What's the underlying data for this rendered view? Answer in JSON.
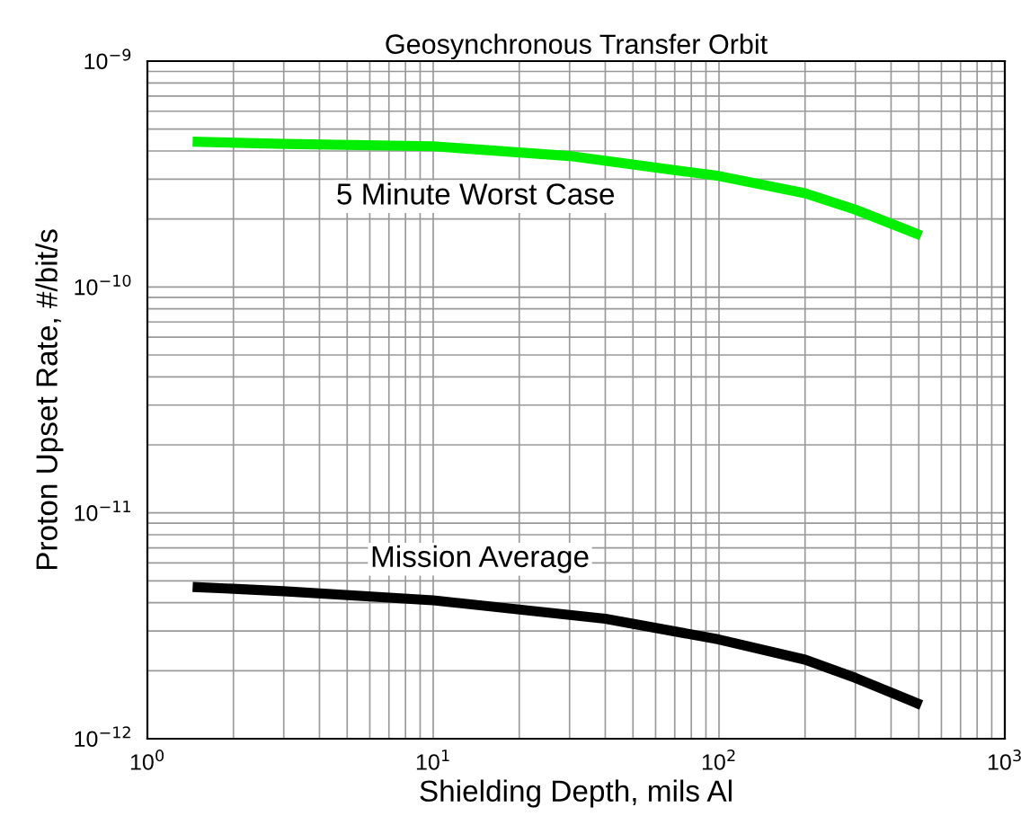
{
  "chart_data": {
    "type": "line",
    "title": "Geosynchronous Transfer Orbit",
    "xlabel": "Shielding Depth, mils Al",
    "ylabel": "Proton Upset Rate, #/bit/s",
    "log": "xy",
    "grid": true,
    "line_style": "solid",
    "marker": "none",
    "xlim": [
      1,
      1000
    ],
    "ylim": [
      1e-12,
      1e-09
    ],
    "xticks": [
      {
        "value": 1,
        "label": "10$^{0}$"
      },
      {
        "value": 10,
        "label": "10$^{1}$"
      },
      {
        "value": 100,
        "label": "10$^{2}$"
      },
      {
        "value": 1000,
        "label": "10$^{3}$"
      }
    ],
    "yticks": [
      {
        "value": 1e-12,
        "label": "10$^{−12}$"
      },
      {
        "value": 1e-11,
        "label": "10$^{−11}$"
      },
      {
        "value": 1e-10,
        "label": "10$^{−10}$"
      },
      {
        "value": 1e-09,
        "label": "10$^{−9}$"
      }
    ],
    "series": [
      {
        "name": "5 Minute Worst Case",
        "color": "#00ee00",
        "x": [
          1.44,
          3,
          10,
          30,
          100,
          200,
          300,
          510
        ],
        "values": [
          4.4e-10,
          4.3e-10,
          4.2e-10,
          3.8e-10,
          3.1e-10,
          2.6e-10,
          2.2e-10,
          1.69e-10
        ]
      },
      {
        "name": "Mission Average",
        "color": "#000000",
        "x": [
          1.44,
          3,
          10,
          40,
          100,
          200,
          300,
          510
        ],
        "values": [
          4.7e-12,
          4.5e-12,
          4.1e-12,
          3.4e-12,
          2.75e-12,
          2.24e-12,
          1.86e-12,
          1.41e-12
        ]
      }
    ]
  }
}
